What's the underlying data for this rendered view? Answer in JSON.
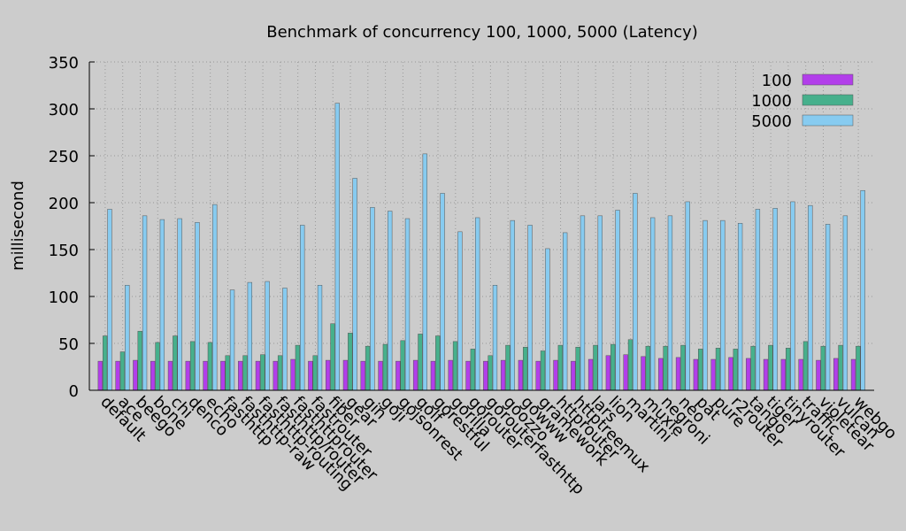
{
  "chart_data": {
    "type": "bar",
    "title": "Benchmark of concurrency 100, 1000, 5000 (Latency)",
    "ylabel": "millisecond",
    "categories": [
      "default",
      "ace",
      "beego",
      "bone",
      "chi",
      "denco",
      "echo",
      "fasthttp",
      "fasthttp-raw",
      "fasthttp-routing",
      "fasthttp/router",
      "fasthttprouter",
      "fastrouter",
      "fiber",
      "gear",
      "gin",
      "goji",
      "gojsonrest",
      "golf",
      "gorestful",
      "gorilla",
      "gorouter",
      "gorouterfasthttp",
      "goozzo",
      "gowww",
      "gramework",
      "httprouter",
      "httptreemux",
      "lars",
      "lion",
      "martini",
      "muxie",
      "negroni",
      "neo",
      "pat",
      "pure",
      "r2router",
      "tango",
      "tiger",
      "tinyrouter",
      "traffic",
      "violetear",
      "vulcan",
      "webgo"
    ],
    "series": [
      {
        "name": "100",
        "color": "#b23eea",
        "values": [
          31,
          31,
          32,
          31,
          31,
          31,
          31,
          31,
          31,
          31,
          31,
          33,
          31,
          32,
          32,
          31,
          31,
          31,
          32,
          31,
          32,
          31,
          31,
          32,
          32,
          31,
          32,
          31,
          33,
          37,
          38,
          36,
          34,
          35,
          33,
          33,
          35,
          34,
          33,
          33,
          33,
          32,
          34,
          33
        ]
      },
      {
        "name": "1000",
        "color": "#46b08c",
        "values": [
          58,
          41,
          63,
          51,
          58,
          52,
          51,
          37,
          37,
          38,
          37,
          48,
          37,
          71,
          61,
          47,
          49,
          53,
          60,
          58,
          52,
          44,
          37,
          48,
          46,
          42,
          48,
          46,
          48,
          49,
          54,
          47,
          47,
          48,
          44,
          45,
          44,
          47,
          48,
          45,
          52,
          47,
          48,
          47
        ]
      },
      {
        "name": "5000",
        "color": "#87cbf0",
        "values": [
          193,
          112,
          186,
          182,
          183,
          179,
          198,
          107,
          115,
          116,
          109,
          176,
          112,
          306,
          226,
          195,
          191,
          183,
          252,
          210,
          169,
          184,
          112,
          181,
          176,
          151,
          168,
          186,
          186,
          192,
          210,
          184,
          186,
          201,
          181,
          181,
          178,
          193,
          194,
          201,
          197,
          177,
          186,
          213
        ]
      }
    ],
    "ylim": [
      0,
      350
    ],
    "yticks": [
      0,
      50,
      100,
      150,
      200,
      250,
      300,
      350
    ],
    "grid": true,
    "legend": "top-right"
  }
}
